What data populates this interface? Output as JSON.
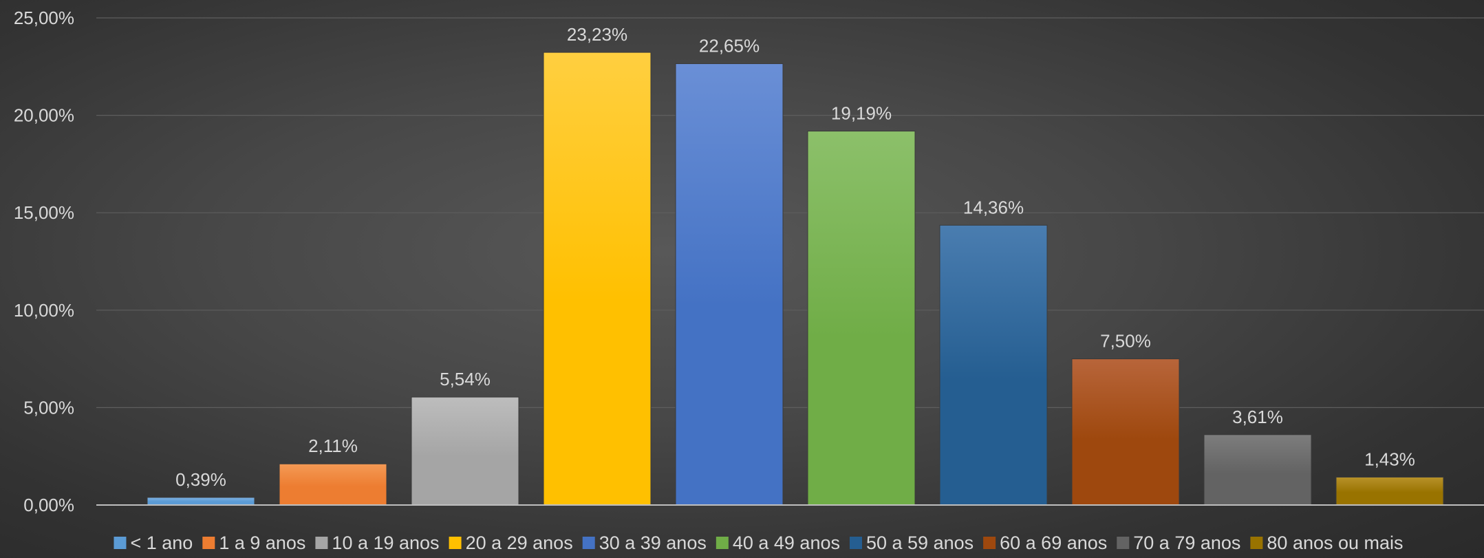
{
  "chart_data": {
    "type": "bar",
    "title": "",
    "xlabel": "",
    "ylabel": "",
    "ylim": [
      0,
      25
    ],
    "y_ticks": [
      "0,00%",
      "5,00%",
      "10,00%",
      "15,00%",
      "20,00%",
      "25,00%"
    ],
    "grid": true,
    "legend_position": "bottom",
    "categories": [
      "< 1 ano",
      "1 a 9 anos",
      "10 a 19 anos",
      "20 a 29 anos",
      "30 a 39 anos",
      "40 a 49 anos",
      "50 a 59 anos",
      "60 a 69 anos",
      "70 a 79 anos",
      "80 anos ou mais"
    ],
    "values": [
      0.39,
      2.11,
      5.54,
      23.23,
      22.65,
      19.19,
      14.36,
      7.5,
      3.61,
      1.43
    ],
    "data_labels": [
      "0,39%",
      "2,11%",
      "5,54%",
      "23,23%",
      "22,65%",
      "19,19%",
      "14,36%",
      "7,50%",
      "3,61%",
      "1,43%"
    ],
    "colors": [
      "#5b9bd5",
      "#ed7d31",
      "#a5a5a5",
      "#ffc000",
      "#4472c4",
      "#70ad47",
      "#255e91",
      "#9e480e",
      "#636363",
      "#997300"
    ],
    "colors_light": [
      "#7fb2e3",
      "#f49a55",
      "#bdbdbd",
      "#ffcf40",
      "#6a8fd6",
      "#8cc06a",
      "#4a7db0",
      "#b8653a",
      "#7d7d7d",
      "#b8922a"
    ]
  }
}
